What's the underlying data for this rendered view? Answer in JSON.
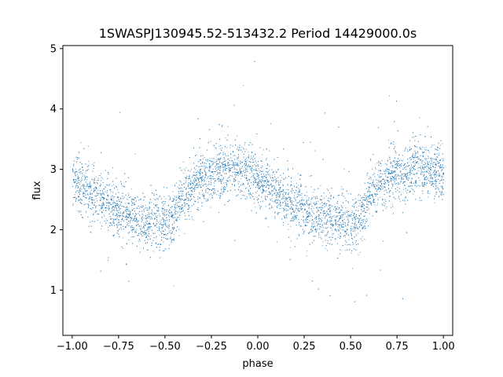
{
  "chart_data": {
    "type": "scatter",
    "title": "1SWASPJ130945.52-513432.2 Period 14429000.0s",
    "xlabel": "phase",
    "ylabel": "flux",
    "xlim": [
      -1.05,
      1.05
    ],
    "ylim": [
      0.25,
      5.05
    ],
    "grid": false,
    "legend": "none",
    "point_color": "#1f77b4",
    "x_ticks": [
      -1.0,
      -0.75,
      -0.5,
      -0.25,
      0.0,
      0.25,
      0.5,
      0.75,
      1.0
    ],
    "x_tick_labels": [
      "−1.00",
      "−0.75",
      "−0.50",
      "−0.25",
      "0.00",
      "0.25",
      "0.50",
      "0.75",
      "1.00"
    ],
    "y_ticks": [
      1,
      2,
      3,
      4,
      5
    ],
    "y_tick_labels": [
      "1",
      "2",
      "3",
      "4",
      "5"
    ],
    "series": [
      {
        "description_points": "phase-folded light curve, folded twice over phase -1 to 1",
        "trend": {
          "phase": [
            0.0,
            0.1,
            0.2,
            0.3,
            0.4,
            0.45,
            0.5,
            0.55,
            0.6,
            0.7,
            0.8,
            0.9,
            1.0
          ],
          "flux": [
            2.85,
            2.6,
            2.4,
            2.25,
            2.15,
            2.2,
            2.1,
            2.2,
            2.6,
            2.85,
            3.0,
            3.0,
            2.9
          ]
        },
        "scatter_sd": 0.22,
        "point_count": 7000
      }
    ]
  }
}
